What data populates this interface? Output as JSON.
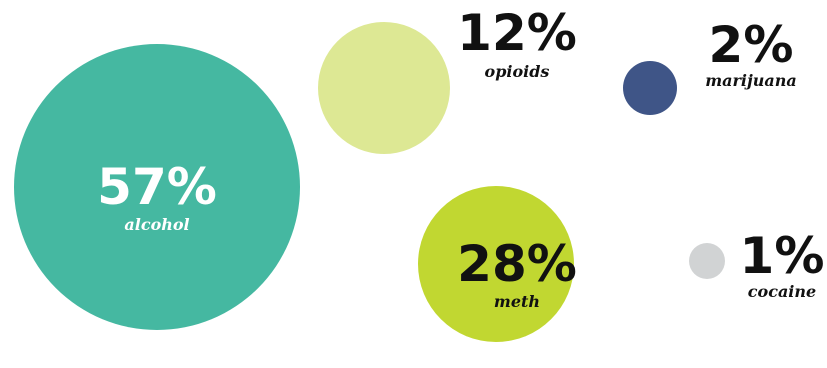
{
  "chart_data": {
    "type": "bubble",
    "title": "",
    "values_unit": "%",
    "series": [
      {
        "name": "alcohol",
        "value": 57,
        "label": "57%",
        "color": "#45b8a1",
        "label_color": "#ffffff"
      },
      {
        "name": "opioids",
        "value": 12,
        "label": "12%",
        "color": "#dde894",
        "label_color": "#111111"
      },
      {
        "name": "marijuana",
        "value": 2,
        "label": "2%",
        "color": "#3f5587",
        "label_color": "#111111"
      },
      {
        "name": "meth",
        "value": 28,
        "label": "28%",
        "color": "#c1d731",
        "label_color": "#111111"
      },
      {
        "name": "cocaine",
        "value": 1,
        "label": "1%",
        "color": "#d1d3d4",
        "label_color": "#111111"
      }
    ]
  }
}
